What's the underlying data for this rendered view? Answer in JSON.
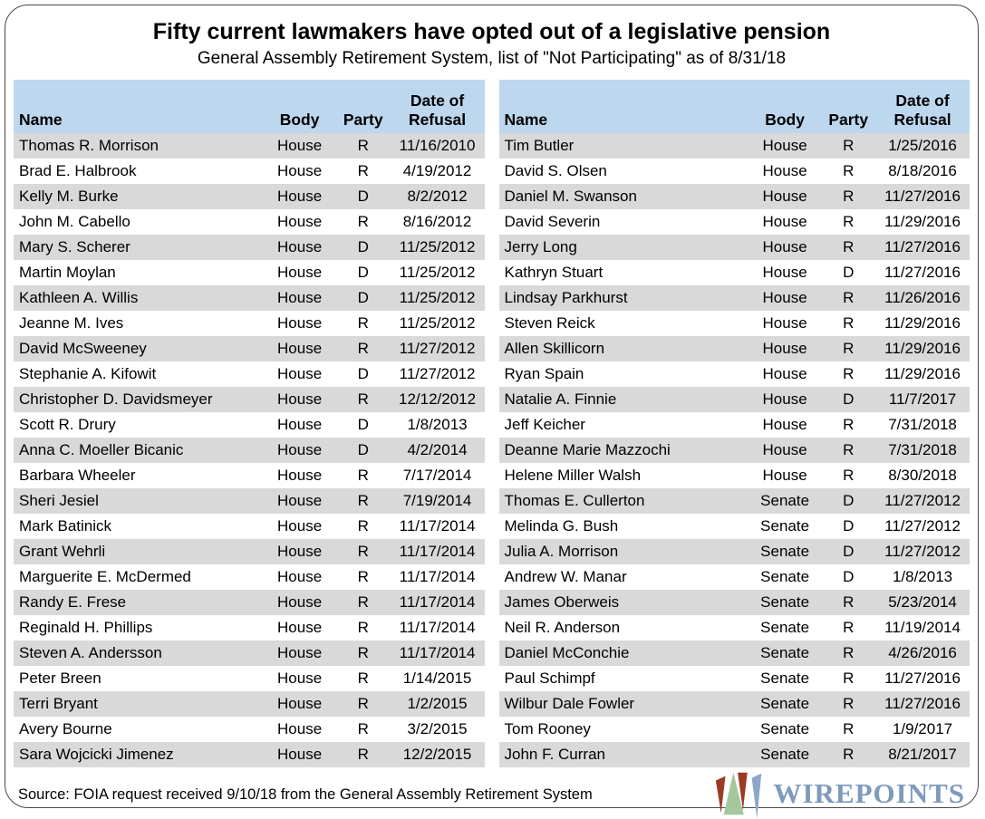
{
  "title": "Fifty current lawmakers have opted out of a legislative pension",
  "subtitle": "General Assembly Retirement System, list of \"Not Participating\" as of 8/31/18",
  "header": {
    "name": "Name",
    "body": "Body",
    "party": "Party",
    "date_line1": "Date of",
    "date_line2": "Refusal"
  },
  "source": "Source: FOIA request received 9/10/18 from the General Assembly Retirement System",
  "logo": {
    "wordmark": "WIREPOINTS",
    "wedge_red": "#9A3B24",
    "wedge_green": "#A5C79E",
    "wedge_blue": "#8CA6C6",
    "wordmark_color": "#7E9ABD"
  },
  "colors": {
    "header_bg": "#BDD7EE",
    "stripe_bg": "#D9D9D9",
    "border": "#4A4A4A"
  },
  "chart_data": {
    "type": "table",
    "title": "Fifty current lawmakers have opted out of a legislative pension",
    "subtitle": "General Assembly Retirement System, list of \"Not Participating\" as of 8/31/18",
    "columns": [
      "Name",
      "Body",
      "Party",
      "Date of Refusal"
    ],
    "left_rows": [
      [
        "Thomas R. Morrison",
        "House",
        "R",
        "11/16/2010"
      ],
      [
        "Brad E. Halbrook",
        "House",
        "R",
        "4/19/2012"
      ],
      [
        "Kelly M. Burke",
        "House",
        "D",
        "8/2/2012"
      ],
      [
        "John M. Cabello",
        "House",
        "R",
        "8/16/2012"
      ],
      [
        "Mary S. Scherer",
        "House",
        "D",
        "11/25/2012"
      ],
      [
        "Martin Moylan",
        "House",
        "D",
        "11/25/2012"
      ],
      [
        "Kathleen A. Willis",
        "House",
        "D",
        "11/25/2012"
      ],
      [
        "Jeanne M. Ives",
        "House",
        "R",
        "11/25/2012"
      ],
      [
        "David McSweeney",
        "House",
        "R",
        "11/27/2012"
      ],
      [
        "Stephanie A. Kifowit",
        "House",
        "D",
        "11/27/2012"
      ],
      [
        "Christopher D. Davidsmeyer",
        "House",
        "R",
        "12/12/2012"
      ],
      [
        "Scott R. Drury",
        "House",
        "D",
        "1/8/2013"
      ],
      [
        "Anna C. Moeller Bicanic",
        "House",
        "D",
        "4/2/2014"
      ],
      [
        "Barbara Wheeler",
        "House",
        "R",
        "7/17/2014"
      ],
      [
        "Sheri Jesiel",
        "House",
        "R",
        "7/19/2014"
      ],
      [
        "Mark Batinick",
        "House",
        "R",
        "11/17/2014"
      ],
      [
        "Grant Wehrli",
        "House",
        "R",
        "11/17/2014"
      ],
      [
        "Marguerite E. McDermed",
        "House",
        "R",
        "11/17/2014"
      ],
      [
        "Randy E. Frese",
        "House",
        "R",
        "11/17/2014"
      ],
      [
        "Reginald H. Phillips",
        "House",
        "R",
        "11/17/2014"
      ],
      [
        "Steven A. Andersson",
        "House",
        "R",
        "11/17/2014"
      ],
      [
        "Peter Breen",
        "House",
        "R",
        "1/14/2015"
      ],
      [
        "Terri Bryant",
        "House",
        "R",
        "1/2/2015"
      ],
      [
        "Avery Bourne",
        "House",
        "R",
        "3/2/2015"
      ],
      [
        "Sara Wojcicki Jimenez",
        "House",
        "R",
        "12/2/2015"
      ]
    ],
    "right_rows": [
      [
        "Tim Butler",
        "House",
        "R",
        "1/25/2016"
      ],
      [
        "David S. Olsen",
        "House",
        "R",
        "8/18/2016"
      ],
      [
        "Daniel M. Swanson",
        "House",
        "R",
        "11/27/2016"
      ],
      [
        "David Severin",
        "House",
        "R",
        "11/29/2016"
      ],
      [
        "Jerry Long",
        "House",
        "R",
        "11/27/2016"
      ],
      [
        "Kathryn Stuart",
        "House",
        "D",
        "11/27/2016"
      ],
      [
        "Lindsay Parkhurst",
        "House",
        "R",
        "11/26/2016"
      ],
      [
        "Steven Reick",
        "House",
        "R",
        "11/29/2016"
      ],
      [
        "Allen Skillicorn",
        "House",
        "R",
        "11/29/2016"
      ],
      [
        "Ryan Spain",
        "House",
        "R",
        "11/29/2016"
      ],
      [
        "Natalie A. Finnie",
        "House",
        "D",
        "11/7/2017"
      ],
      [
        "Jeff Keicher",
        "House",
        "R",
        "7/31/2018"
      ],
      [
        "Deanne Marie Mazzochi",
        "House",
        "R",
        "7/31/2018"
      ],
      [
        "Helene Miller Walsh",
        "House",
        "R",
        "8/30/2018"
      ],
      [
        "Thomas E. Cullerton",
        "Senate",
        "D",
        "11/27/2012"
      ],
      [
        "Melinda G. Bush",
        "Senate",
        "D",
        "11/27/2012"
      ],
      [
        "Julia A. Morrison",
        "Senate",
        "D",
        "11/27/2012"
      ],
      [
        "Andrew W. Manar",
        "Senate",
        "D",
        "1/8/2013"
      ],
      [
        "James Oberweis",
        "Senate",
        "R",
        "5/23/2014"
      ],
      [
        "Neil R. Anderson",
        "Senate",
        "R",
        "11/19/2014"
      ],
      [
        "Daniel McConchie",
        "Senate",
        "R",
        "4/26/2016"
      ],
      [
        "Paul Schimpf",
        "Senate",
        "R",
        "11/27/2016"
      ],
      [
        "Wilbur Dale Fowler",
        "Senate",
        "R",
        "11/27/2016"
      ],
      [
        "Tom Rooney",
        "Senate",
        "R",
        "1/9/2017"
      ],
      [
        "John F. Curran",
        "Senate",
        "R",
        "8/21/2017"
      ]
    ]
  }
}
